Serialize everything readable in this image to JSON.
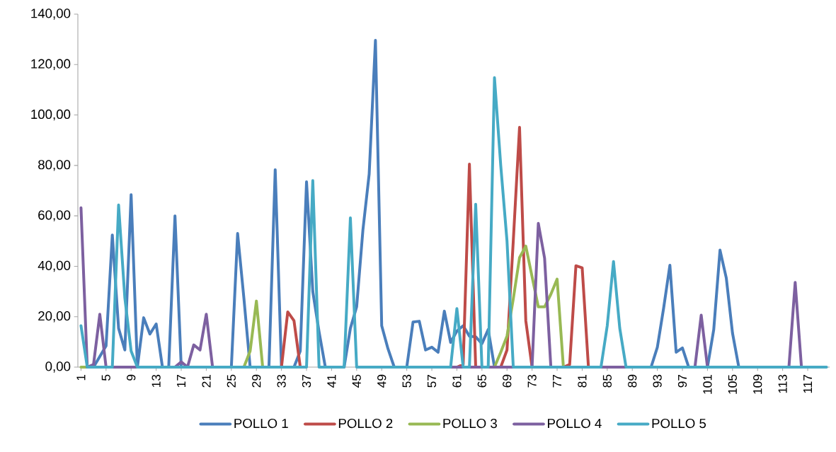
{
  "chart_data": {
    "type": "line",
    "categories": [
      "1",
      null,
      null,
      null,
      "5",
      null,
      null,
      null,
      "9",
      null,
      null,
      null,
      "13",
      null,
      null,
      null,
      "17",
      null,
      null,
      null,
      "21",
      null,
      null,
      null,
      "25",
      null,
      null,
      null,
      "29",
      null,
      null,
      null,
      "33",
      null,
      null,
      null,
      "37",
      null,
      null,
      null,
      "41",
      null,
      null,
      null,
      "45",
      null,
      null,
      null,
      "49",
      null,
      null,
      null,
      "53",
      null,
      null,
      null,
      "57",
      null,
      null,
      null,
      "61",
      null,
      null,
      null,
      "65",
      null,
      null,
      null,
      "69",
      null,
      null,
      null,
      "73",
      null,
      null,
      null,
      "77",
      null,
      null,
      null,
      "81",
      null,
      null,
      null,
      "85",
      null,
      null,
      null,
      "89",
      null,
      null,
      null,
      "93",
      null,
      null,
      null,
      "97",
      null,
      null,
      null,
      "101",
      null,
      null,
      null,
      "105",
      null,
      null,
      null,
      "109",
      null,
      null,
      null,
      "113",
      null,
      null,
      null,
      "117",
      null,
      null,
      null
    ],
    "series": [
      {
        "name": "POLLO 1",
        "color": "#4a7ebb",
        "values": [
          null,
          null,
          0,
          4.2,
          8.4,
          52.4,
          15.4,
          6.8,
          68.4,
          0,
          19.6,
          13.1,
          17.1,
          0,
          0,
          60,
          0,
          null,
          null,
          null,
          null,
          null,
          null,
          null,
          0,
          53,
          27.4,
          0,
          null,
          null,
          0,
          78.3,
          0,
          null,
          0,
          6.4,
          73.5,
          30,
          14,
          0,
          null,
          null,
          0,
          15.4,
          23.9,
          54.4,
          76.6,
          129.6,
          16.4,
          7.3,
          0,
          null,
          0,
          17.9,
          18.2,
          6.8,
          7.9,
          5.9,
          22.2,
          9.8,
          14.3,
          16.4,
          12.3,
          12,
          9.3,
          14.9,
          0,
          null,
          null,
          null,
          null,
          null,
          null,
          null,
          null,
          null,
          null,
          null,
          null,
          null,
          null,
          null,
          null,
          null,
          null,
          null,
          null,
          null,
          null,
          null,
          null,
          0,
          7.9,
          23.4,
          40.4,
          5.9,
          7.6,
          0,
          null,
          null,
          0,
          14.9,
          46.4,
          35.4,
          13.4,
          0,
          null,
          null,
          null,
          null,
          null,
          null,
          null,
          null,
          null,
          null,
          null,
          null,
          null,
          null
        ]
      },
      {
        "name": "POLLO 2",
        "color": "#be4b48",
        "values": [
          null,
          null,
          null,
          null,
          null,
          null,
          null,
          null,
          null,
          null,
          null,
          null,
          null,
          null,
          null,
          null,
          null,
          null,
          null,
          null,
          null,
          null,
          null,
          null,
          null,
          null,
          null,
          null,
          null,
          null,
          null,
          null,
          0,
          21.9,
          18.4,
          0,
          null,
          null,
          null,
          null,
          null,
          null,
          null,
          null,
          null,
          null,
          null,
          null,
          null,
          null,
          null,
          null,
          null,
          null,
          null,
          null,
          null,
          null,
          null,
          null,
          0,
          1,
          80.5,
          0,
          null,
          null,
          null,
          0,
          6.8,
          50,
          95.1,
          18.4,
          0,
          null,
          null,
          null,
          null,
          0,
          1,
          40.2,
          39.4,
          0,
          null,
          null,
          null,
          null,
          null,
          null,
          null,
          null,
          null,
          null,
          null,
          null,
          null,
          null,
          null,
          null,
          null,
          null,
          null,
          null,
          null,
          null,
          null,
          null,
          null,
          null,
          null,
          null,
          null,
          null,
          null,
          null,
          null,
          null,
          null,
          null,
          null,
          null
        ]
      },
      {
        "name": "POLLO 3",
        "color": "#98b954",
        "values": [
          0,
          0,
          null,
          null,
          null,
          null,
          null,
          null,
          null,
          null,
          null,
          null,
          null,
          null,
          null,
          null,
          null,
          null,
          null,
          null,
          null,
          null,
          null,
          null,
          null,
          null,
          0,
          6.4,
          26.2,
          0,
          null,
          null,
          null,
          null,
          null,
          null,
          null,
          null,
          null,
          null,
          null,
          null,
          null,
          null,
          null,
          null,
          null,
          null,
          null,
          null,
          null,
          null,
          null,
          null,
          null,
          null,
          null,
          null,
          null,
          null,
          null,
          null,
          null,
          null,
          null,
          null,
          0,
          5.9,
          12.3,
          27,
          43.4,
          48,
          35.9,
          23.9,
          23.9,
          28.9,
          34.9,
          0,
          null,
          null,
          null,
          null,
          null,
          null,
          null,
          null,
          null,
          null,
          null,
          null,
          null,
          null,
          null,
          null,
          null,
          null,
          null,
          null,
          null,
          null,
          null,
          null,
          null,
          null,
          null,
          null,
          null,
          null,
          null,
          null,
          null,
          null,
          null,
          null,
          null,
          null,
          null,
          null,
          null,
          null
        ]
      },
      {
        "name": "POLLO 4",
        "color": "#7d60a0",
        "values": [
          63.2,
          0,
          1,
          21,
          0,
          0,
          0,
          0,
          0,
          0,
          null,
          null,
          null,
          null,
          null,
          0,
          2.1,
          0,
          8.8,
          6.8,
          21,
          0,
          null,
          null,
          null,
          null,
          null,
          null,
          null,
          null,
          null,
          null,
          null,
          null,
          null,
          null,
          null,
          null,
          null,
          null,
          null,
          null,
          null,
          null,
          null,
          null,
          null,
          null,
          null,
          null,
          null,
          null,
          null,
          null,
          null,
          null,
          null,
          null,
          null,
          0,
          0,
          0,
          0,
          0,
          0,
          0,
          0,
          0,
          0,
          0,
          null,
          null,
          0,
          57,
          43.2,
          0,
          null,
          null,
          null,
          null,
          null,
          null,
          null,
          0,
          0,
          0,
          0,
          0,
          null,
          null,
          null,
          null,
          null,
          null,
          null,
          null,
          null,
          null,
          0,
          20.6,
          0,
          null,
          null,
          null,
          null,
          null,
          null,
          null,
          null,
          null,
          null,
          null,
          null,
          0,
          33.6,
          0,
          null,
          null,
          null,
          null
        ]
      },
      {
        "name": "POLLO 5",
        "color": "#46aac5",
        "values": [
          16.4,
          0,
          0,
          0,
          0,
          0,
          64.3,
          27.4,
          6.4,
          0,
          0,
          0,
          0,
          0,
          0,
          0,
          0,
          0,
          0,
          0,
          0,
          0,
          0,
          0,
          0,
          0,
          0,
          0,
          0,
          0,
          0,
          0,
          0,
          0,
          0,
          0,
          0,
          74,
          0,
          0,
          0,
          0,
          0,
          59.2,
          0,
          0,
          0,
          0,
          0,
          0,
          0,
          0,
          0,
          0,
          0,
          0,
          0,
          0,
          0,
          0,
          23.2,
          0,
          0,
          64.6,
          0,
          0,
          114.8,
          80,
          50,
          0,
          0,
          0,
          0,
          0,
          0,
          0,
          0,
          0,
          0,
          0,
          0,
          0,
          0,
          0,
          16.4,
          41.9,
          15.4,
          0,
          0,
          0,
          0,
          0,
          0,
          0,
          0,
          0,
          0,
          0,
          0,
          0,
          0,
          0,
          0,
          0,
          0,
          0,
          0,
          0,
          0,
          0,
          0,
          0,
          0,
          0,
          0,
          0,
          0,
          0,
          0,
          0
        ]
      }
    ],
    "ylim": [
      0,
      140
    ],
    "yticks": [
      {
        "value": 0,
        "label": "0,00"
      },
      {
        "value": 20,
        "label": "20,00"
      },
      {
        "value": 40,
        "label": "40,00"
      },
      {
        "value": 60,
        "label": "60,00"
      },
      {
        "value": 80,
        "label": "80,00"
      },
      {
        "value": 100,
        "label": "100,00"
      },
      {
        "value": 120,
        "label": "120,00"
      },
      {
        "value": 140,
        "label": "140,00"
      }
    ],
    "legend": "bottom",
    "marker": "none",
    "line_style": "solid"
  }
}
